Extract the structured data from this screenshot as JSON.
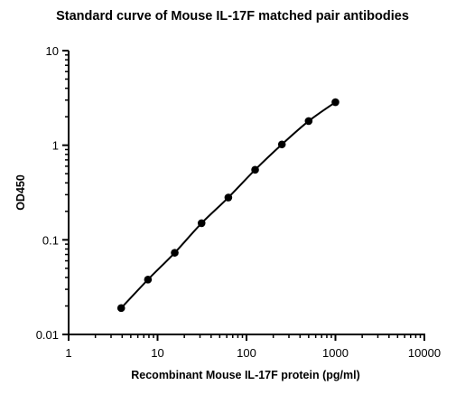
{
  "chart_data": {
    "type": "scatter",
    "title": "Standard curve of Mouse IL-17F matched pair antibodies",
    "xlabel": "Recombinant Mouse IL-17F protein (pg/ml)",
    "ylabel": "OD450",
    "xscale": "log",
    "yscale": "log",
    "xlim": [
      1,
      10000
    ],
    "ylim": [
      0.01,
      10
    ],
    "x_ticks": [
      "1",
      "10",
      "100",
      "1000",
      "10000"
    ],
    "y_ticks": [
      "0.01",
      "0.1",
      "1",
      "10"
    ],
    "grid": false,
    "legend": "none",
    "fitted_line": true,
    "series": [
      {
        "x": [
          3.9,
          7.8,
          15.6,
          31.25,
          62.5,
          125,
          250,
          500,
          1000
        ],
        "y": [
          0.019,
          0.038,
          0.073,
          0.15,
          0.28,
          0.55,
          1.02,
          1.8,
          2.85
        ]
      }
    ],
    "colors": {
      "points": "#000000",
      "line": "#000000",
      "axes": "#000000"
    }
  }
}
